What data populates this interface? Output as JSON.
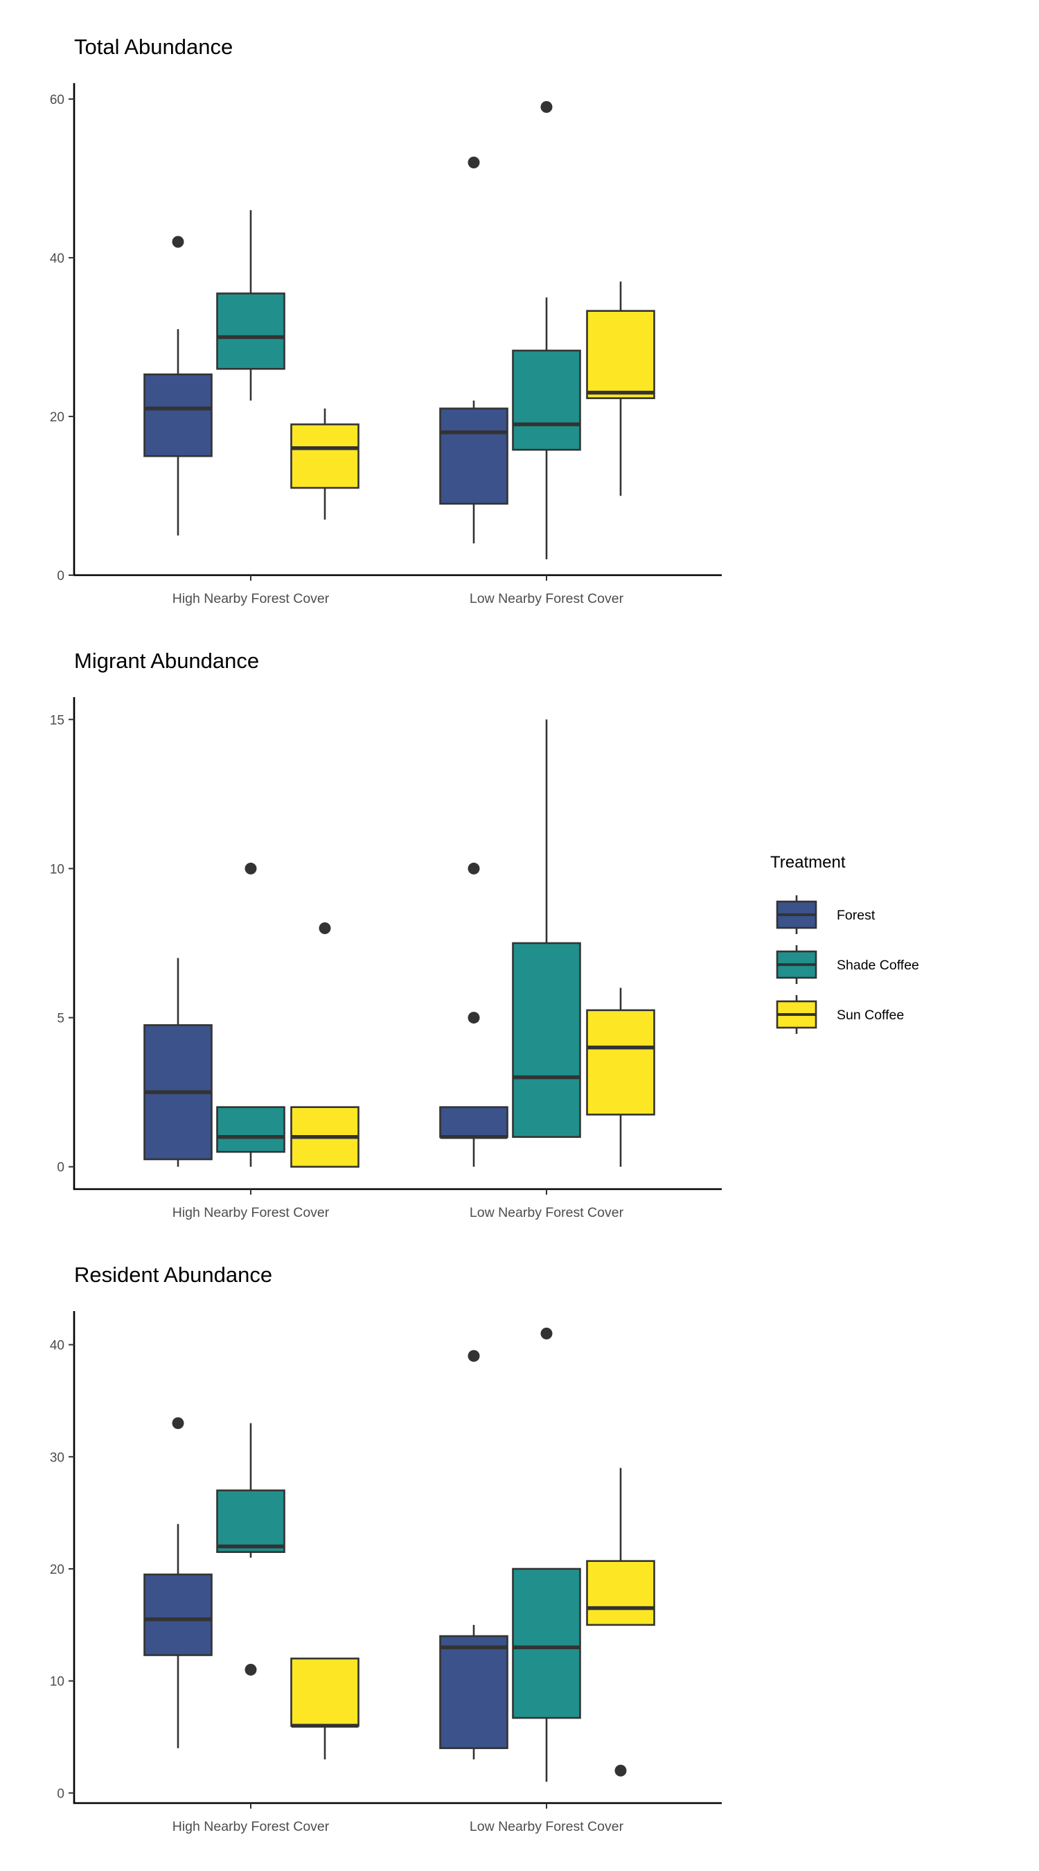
{
  "chart_data": [
    {
      "type": "boxplot",
      "title": "Total Abundance",
      "xlabel": "",
      "ylabel": "",
      "ylim": [
        0,
        62
      ],
      "yticks": [
        0,
        20,
        40,
        60
      ],
      "categories": [
        "High Nearby Forest Cover",
        "Low Nearby Forest Cover"
      ],
      "series": [
        {
          "name": "Forest",
          "boxes": [
            {
              "whisker_low": 5,
              "q1": 15,
              "median": 21,
              "q3": 25.3,
              "whisker_high": 31,
              "outliers": [
                42
              ]
            },
            {
              "whisker_low": 4,
              "q1": 9,
              "median": 18,
              "q3": 21,
              "whisker_high": 22,
              "outliers": [
                52
              ]
            }
          ]
        },
        {
          "name": "Shade Coffee",
          "boxes": [
            {
              "whisker_low": 22,
              "q1": 26,
              "median": 30,
              "q3": 35.5,
              "whisker_high": 46,
              "outliers": []
            },
            {
              "whisker_low": 2,
              "q1": 15.8,
              "median": 19,
              "q3": 28.3,
              "whisker_high": 35,
              "outliers": [
                59
              ]
            }
          ]
        },
        {
          "name": "Sun Coffee",
          "boxes": [
            {
              "whisker_low": 7,
              "q1": 11,
              "median": 16,
              "q3": 19,
              "whisker_high": 21,
              "outliers": []
            },
            {
              "whisker_low": 10,
              "q1": 22.3,
              "median": 23,
              "q3": 33.3,
              "whisker_high": 37,
              "outliers": []
            }
          ]
        }
      ]
    },
    {
      "type": "boxplot",
      "title": "Migrant Abundance",
      "xlabel": "",
      "ylabel": "",
      "ylim": [
        -0.75,
        15.75
      ],
      "yticks": [
        0,
        5,
        10,
        15
      ],
      "categories": [
        "High Nearby Forest Cover",
        "Low Nearby Forest Cover"
      ],
      "series": [
        {
          "name": "Forest",
          "boxes": [
            {
              "whisker_low": 0,
              "q1": 0.25,
              "median": 2.5,
              "q3": 4.75,
              "whisker_high": 7,
              "outliers": []
            },
            {
              "whisker_low": 0,
              "q1": 1,
              "median": 1,
              "q3": 2,
              "whisker_high": 2,
              "outliers": [
                5,
                10
              ]
            }
          ]
        },
        {
          "name": "Shade Coffee",
          "boxes": [
            {
              "whisker_low": 0,
              "q1": 0.5,
              "median": 1,
              "q3": 2,
              "whisker_high": 2,
              "outliers": [
                10
              ]
            },
            {
              "whisker_low": 1,
              "q1": 1,
              "median": 3,
              "q3": 7.5,
              "whisker_high": 15,
              "outliers": []
            }
          ]
        },
        {
          "name": "Sun Coffee",
          "boxes": [
            {
              "whisker_low": 0,
              "q1": 0,
              "median": 1,
              "q3": 2,
              "whisker_high": 2,
              "outliers": [
                8
              ]
            },
            {
              "whisker_low": 0,
              "q1": 1.75,
              "median": 4,
              "q3": 5.25,
              "whisker_high": 6,
              "outliers": []
            }
          ]
        }
      ]
    },
    {
      "type": "boxplot",
      "title": "Resident Abundance",
      "xlabel": "",
      "ylabel": "",
      "ylim": [
        -0.9,
        43
      ],
      "yticks": [
        0,
        10,
        20,
        30,
        40
      ],
      "categories": [
        "High Nearby Forest Cover",
        "Low Nearby Forest Cover"
      ],
      "series": [
        {
          "name": "Forest",
          "boxes": [
            {
              "whisker_low": 4,
              "q1": 12.3,
              "median": 15.5,
              "q3": 19.5,
              "whisker_high": 24,
              "outliers": [
                33
              ]
            },
            {
              "whisker_low": 3,
              "q1": 4,
              "median": 13,
              "q3": 14,
              "whisker_high": 15,
              "outliers": [
                39
              ]
            }
          ]
        },
        {
          "name": "Shade Coffee",
          "boxes": [
            {
              "whisker_low": 21,
              "q1": 21.5,
              "median": 22,
              "q3": 27,
              "whisker_high": 33,
              "outliers": [
                11
              ]
            },
            {
              "whisker_low": 1,
              "q1": 6.7,
              "median": 13,
              "q3": 20,
              "whisker_high": 20,
              "outliers": [
                41
              ]
            }
          ]
        },
        {
          "name": "Sun Coffee",
          "boxes": [
            {
              "whisker_low": 3,
              "q1": 6,
              "median": 6,
              "q3": 12,
              "whisker_high": 12,
              "outliers": []
            },
            {
              "whisker_low": 15,
              "q1": 15,
              "median": 16.5,
              "q3": 20.7,
              "whisker_high": 29,
              "outliers": [
                2
              ]
            }
          ]
        }
      ]
    }
  ],
  "legend": {
    "title": "Treatment",
    "placement": "right",
    "items": [
      {
        "label": "Forest",
        "color": "#3b528b"
      },
      {
        "label": "Shade Coffee",
        "color": "#21908c"
      },
      {
        "label": "Sun Coffee",
        "color": "#fde725"
      }
    ]
  },
  "style": {
    "box_outline": "#333333",
    "axis_color": "#000000",
    "tick_label_color": "#4d4d4d",
    "grid": false
  }
}
